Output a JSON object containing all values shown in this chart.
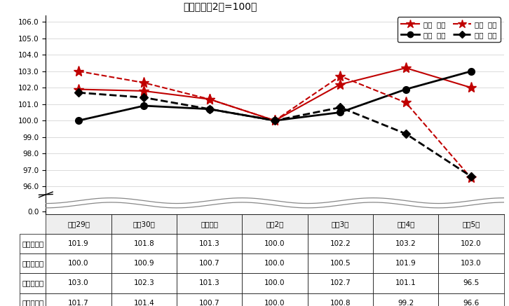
{
  "title": "指数（令和2年=100）",
  "x_labels": [
    "平成29年",
    "平成30年",
    "令和元年",
    "令和2年",
    "令和3年",
    "令和4年",
    "令和5年"
  ],
  "miyazaki_meimoku": [
    101.9,
    101.8,
    101.3,
    100.0,
    102.2,
    103.2,
    102.0
  ],
  "zenkoku_meimoku": [
    100.0,
    100.9,
    100.7,
    100.0,
    100.5,
    101.9,
    103.0
  ],
  "miyazaki_jissitsu": [
    103.0,
    102.3,
    101.3,
    100.0,
    102.7,
    101.1,
    96.5
  ],
  "zenkoku_jissitsu": [
    101.7,
    101.4,
    100.7,
    100.0,
    100.8,
    99.2,
    96.6
  ],
  "color_miyazaki": "#C00000",
  "color_zenkoku": "#000000",
  "legend_labels": [
    "宮崎  名目",
    "全国  名目",
    "宮崎  実質",
    "全国  実質"
  ],
  "table_rows": [
    "宮崎　名目",
    "全国　名目",
    "宮崎　実質",
    "全国　実質"
  ],
  "table_data": [
    [
      101.9,
      101.8,
      101.3,
      100.0,
      102.2,
      103.2,
      102.0
    ],
    [
      100.0,
      100.9,
      100.7,
      100.0,
      100.5,
      101.9,
      103.0
    ],
    [
      103.0,
      102.3,
      101.3,
      100.0,
      102.7,
      101.1,
      96.5
    ],
    [
      101.7,
      101.4,
      100.7,
      100.0,
      100.8,
      99.2,
      96.6
    ]
  ],
  "upper_ylim": [
    95.5,
    106.4
  ],
  "upper_yticks": [
    96.0,
    97.0,
    98.0,
    99.0,
    100.0,
    101.0,
    102.0,
    103.0,
    104.0,
    105.0,
    106.0
  ],
  "lower_ylim": [
    -0.3,
    1.5
  ],
  "lower_yticks": [
    0.0
  ],
  "wave_color": "#888888",
  "grid_color": "#cccccc"
}
